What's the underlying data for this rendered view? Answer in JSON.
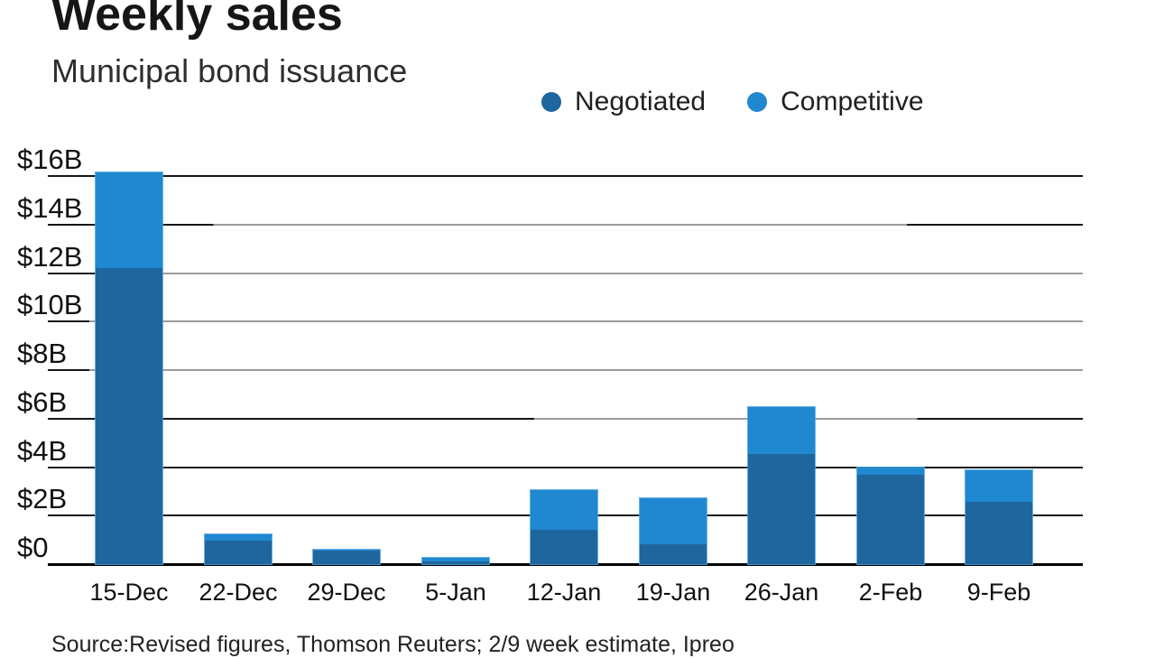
{
  "header": {
    "title": "Weekly sales",
    "subtitle": "Municipal bond issuance"
  },
  "legend": {
    "items": [
      {
        "label": "Negotiated",
        "color": "#1f669e"
      },
      {
        "label": "Competitive",
        "color": "#2088d0"
      }
    ]
  },
  "chart_data": {
    "type": "bar",
    "stacked": true,
    "title": "Weekly sales",
    "subtitle": "Municipal bond issuance",
    "categories": [
      "15-Dec",
      "22-Dec",
      "29-Dec",
      "5-Jan",
      "12-Jan",
      "19-Jan",
      "26-Jan",
      "2-Feb",
      "9-Feb"
    ],
    "series": [
      {
        "name": "Negotiated",
        "color": "#1f669e",
        "values": [
          12.2,
          0.95,
          0.55,
          0.1,
          1.4,
          0.8,
          4.55,
          3.7,
          2.55
        ]
      },
      {
        "name": "Competitive",
        "color": "#2088d0",
        "values": [
          3.95,
          0.25,
          0.05,
          0.15,
          1.65,
          1.9,
          1.95,
          0.3,
          1.3
        ]
      }
    ],
    "xlabel": "",
    "ylabel": "",
    "units": "billions USD",
    "ylim": [
      0,
      16
    ],
    "ytick_step": 2,
    "ytick_labels": [
      "$0",
      "$2B",
      "$4B",
      "$6B",
      "$8B",
      "$10B",
      "$12B",
      "$14B",
      "$16B"
    ],
    "grid": "horizontal",
    "legend_position": "top-right"
  },
  "footer": {
    "source": "Source:Revised figures, Thomson Reuters; 2/9 week estimate, Ipreo"
  }
}
